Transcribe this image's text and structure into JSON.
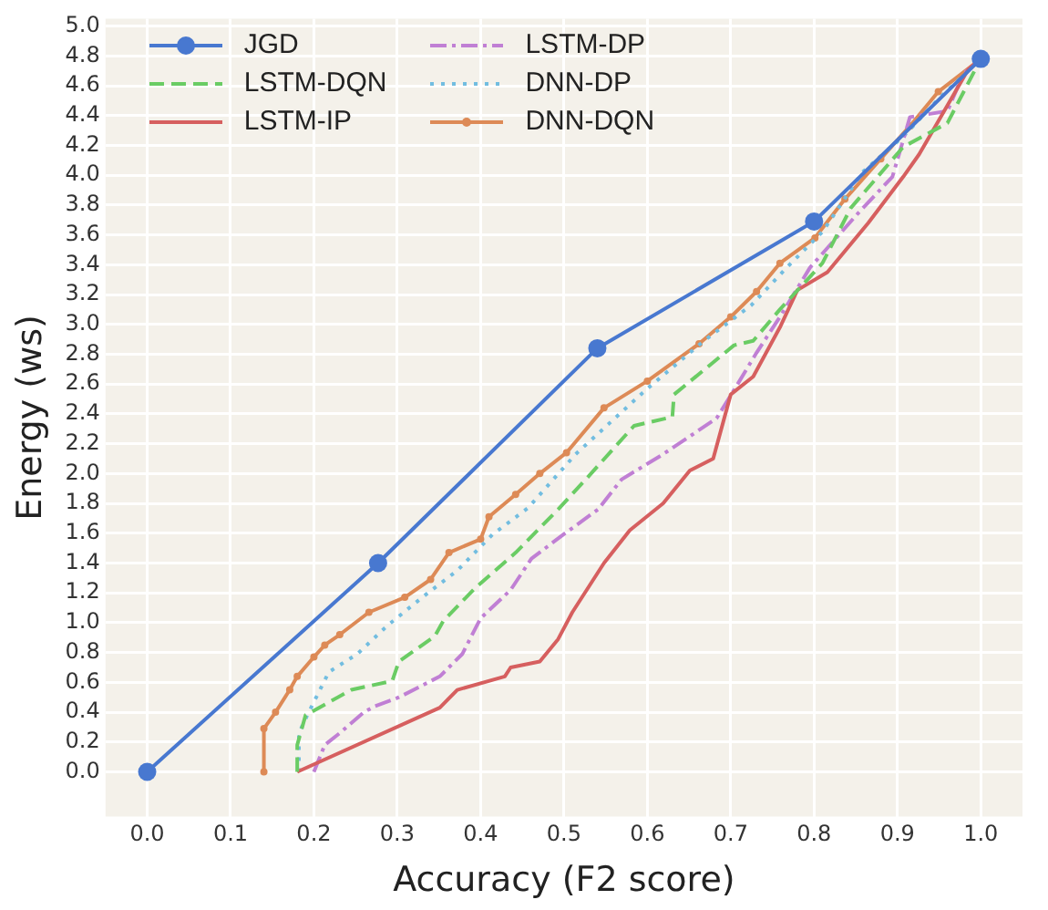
{
  "chart_data": {
    "type": "line",
    "xlabel": "Accuracy (F2 score)",
    "ylabel": "Energy (ws)",
    "xlim": [
      -0.05,
      1.05
    ],
    "ylim": [
      -0.3,
      5.05
    ],
    "xticks": [
      {
        "value": 0,
        "label": "0.0"
      },
      {
        "value": 0.1,
        "label": "0.1"
      },
      {
        "value": 0.2,
        "label": "0.2"
      },
      {
        "value": 0.3,
        "label": "0.3"
      },
      {
        "value": 0.4,
        "label": "0.4"
      },
      {
        "value": 0.5,
        "label": "0.5"
      },
      {
        "value": 0.6,
        "label": "0.6"
      },
      {
        "value": 0.7,
        "label": "0.7"
      },
      {
        "value": 0.8,
        "label": "0.8"
      },
      {
        "value": 0.9,
        "label": "0.9"
      },
      {
        "value": 1,
        "label": "1.0"
      }
    ],
    "yticks": [
      {
        "value": 0,
        "label": "0.0"
      },
      {
        "value": 0.2,
        "label": "0.2"
      },
      {
        "value": 0.4,
        "label": "0.4"
      },
      {
        "value": 0.6,
        "label": "0.6"
      },
      {
        "value": 0.8,
        "label": "0.8"
      },
      {
        "value": 1,
        "label": "1.0"
      },
      {
        "value": 1.2,
        "label": "1.2"
      },
      {
        "value": 1.4,
        "label": "1.4"
      },
      {
        "value": 1.6,
        "label": "1.6"
      },
      {
        "value": 1.8,
        "label": "1.8"
      },
      {
        "value": 2,
        "label": "2.0"
      },
      {
        "value": 2.2,
        "label": "2.2"
      },
      {
        "value": 2.4,
        "label": "2.4"
      },
      {
        "value": 2.6,
        "label": "2.6"
      },
      {
        "value": 2.8,
        "label": "2.8"
      },
      {
        "value": 3,
        "label": "3.0"
      },
      {
        "value": 3.2,
        "label": "3.2"
      },
      {
        "value": 3.4,
        "label": "3.4"
      },
      {
        "value": 3.6,
        "label": "3.6"
      },
      {
        "value": 3.8,
        "label": "3.8"
      },
      {
        "value": 4,
        "label": "4.0"
      },
      {
        "value": 4.2,
        "label": "4.2"
      },
      {
        "value": 4.4,
        "label": "4.4"
      },
      {
        "value": 4.6,
        "label": "4.6"
      },
      {
        "value": 4.8,
        "label": "4.8"
      },
      {
        "value": 5,
        "label": "5.0"
      }
    ],
    "grid": true,
    "legend": "top left",
    "series": [
      {
        "name": "JGD",
        "color": "#4878d0",
        "marker": "circle",
        "line_style": "solid",
        "x": [
          0,
          0.277,
          0.54,
          0.8,
          1.0
        ],
        "values": [
          0,
          1.4,
          2.84,
          3.69,
          4.78
        ]
      },
      {
        "name": "LSTM-DQN",
        "color": "#6acc64",
        "marker": "none",
        "line_style": "dashed",
        "x": [
          0.18,
          0.18,
          0.19,
          0.245,
          0.294,
          0.302,
          0.345,
          0.355,
          0.393,
          0.442,
          0.493,
          0.526,
          0.584,
          0.63,
          0.632,
          0.704,
          0.727,
          0.759,
          0.81,
          0.844,
          0.907,
          0.96,
          1.0
        ],
        "values": [
          0,
          0.18,
          0.38,
          0.55,
          0.61,
          0.74,
          0.91,
          1.01,
          1.23,
          1.47,
          1.76,
          1.96,
          2.32,
          2.38,
          2.53,
          2.86,
          2.89,
          3.1,
          3.41,
          3.78,
          4.19,
          4.35,
          4.78
        ]
      },
      {
        "name": "LSTM-IP",
        "color": "#d65f5f",
        "marker": "none",
        "line_style": "solid",
        "x": [
          0.18,
          0.351,
          0.372,
          0.429,
          0.436,
          0.471,
          0.493,
          0.51,
          0.548,
          0.579,
          0.619,
          0.651,
          0.679,
          0.7,
          0.727,
          0.759,
          0.78,
          0.816,
          0.865,
          0.907,
          0.926,
          0.985,
          1.0
        ],
        "values": [
          0,
          0.43,
          0.55,
          0.64,
          0.7,
          0.74,
          0.89,
          1.07,
          1.4,
          1.62,
          1.8,
          2.02,
          2.1,
          2.53,
          2.65,
          2.98,
          3.23,
          3.35,
          3.68,
          3.99,
          4.14,
          4.71,
          4.78
        ]
      },
      {
        "name": "LSTM-DP",
        "color": "#c07fd4",
        "marker": "none",
        "line_style": "dashdot",
        "x": [
          0.2,
          0.213,
          0.231,
          0.26,
          0.273,
          0.302,
          0.351,
          0.378,
          0.4,
          0.436,
          0.461,
          0.499,
          0.541,
          0.569,
          0.619,
          0.683,
          0.704,
          0.731,
          0.759,
          0.795,
          0.852,
          0.894,
          0.915,
          0.96,
          0.979,
          1.0
        ],
        "values": [
          0,
          0.18,
          0.26,
          0.4,
          0.44,
          0.5,
          0.64,
          0.79,
          1.03,
          1.22,
          1.43,
          1.59,
          1.76,
          1.96,
          2.13,
          2.37,
          2.56,
          2.81,
          3.05,
          3.38,
          3.74,
          3.99,
          4.39,
          4.43,
          4.68,
          4.78
        ]
      },
      {
        "name": "DNN-DP",
        "color": "#72bde0",
        "marker": "none",
        "line_style": "dotted",
        "x": [
          0.182,
          0.182,
          0.192,
          0.218,
          0.252,
          0.288,
          0.33,
          0.372,
          0.414,
          0.457,
          0.514,
          0.598,
          0.668,
          0.725,
          0.767,
          0.81,
          0.858,
          0.907,
          0.949,
          1.0
        ],
        "values": [
          0,
          0.26,
          0.38,
          0.67,
          0.79,
          0.98,
          1.17,
          1.35,
          1.59,
          1.77,
          2.13,
          2.56,
          2.89,
          3.13,
          3.38,
          3.62,
          4.02,
          4.26,
          4.51,
          4.78
        ]
      },
      {
        "name": "DNN-DQN",
        "color": "#dd8a56",
        "marker": "circle",
        "line_style": "solid",
        "x": [
          0.14,
          0.14,
          0.154,
          0.171,
          0.18,
          0.2,
          0.213,
          0.231,
          0.266,
          0.309,
          0.34,
          0.362,
          0.4,
          0.41,
          0.442,
          0.471,
          0.503,
          0.548,
          0.6,
          0.662,
          0.7,
          0.731,
          0.759,
          0.801,
          0.837,
          0.88,
          0.915,
          0.949,
          1.0
        ],
        "values": [
          0,
          0.29,
          0.4,
          0.55,
          0.64,
          0.77,
          0.85,
          0.92,
          1.07,
          1.17,
          1.29,
          1.47,
          1.56,
          1.71,
          1.86,
          2.0,
          2.14,
          2.44,
          2.62,
          2.87,
          3.05,
          3.22,
          3.41,
          3.58,
          3.84,
          4.11,
          4.33,
          4.56,
          4.78
        ]
      }
    ]
  }
}
